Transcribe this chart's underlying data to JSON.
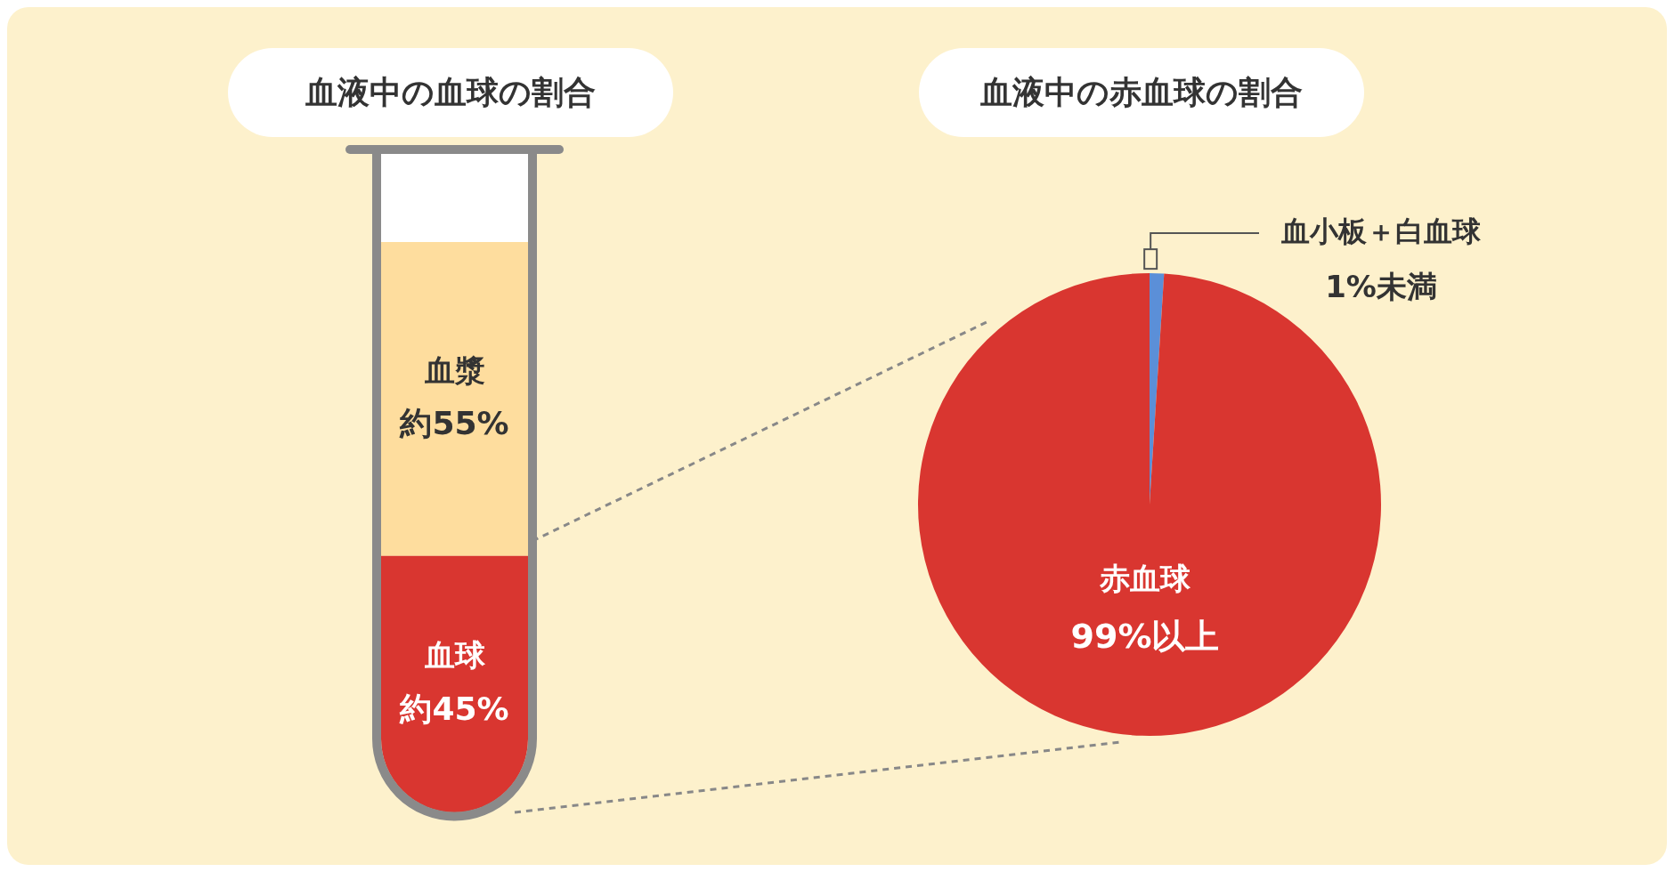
{
  "chart_data": [
    {
      "type": "bar",
      "title": "血液中の血球の割合",
      "stacked": true,
      "categories": [
        null
      ],
      "legend": false,
      "series": [
        {
          "name": "血球",
          "color": "#d93630",
          "values": [
            45
          ],
          "value_labels": [
            "約45%"
          ]
        },
        {
          "name": "血漿",
          "color": "#fedd9e",
          "values": [
            55
          ],
          "value_labels": [
            "約55%"
          ]
        }
      ]
    },
    {
      "type": "pie",
      "title": "血液中の赤血球の割合",
      "categories": [
        "血小板＋白血球",
        "赤血球"
      ],
      "values": [
        1,
        99
      ],
      "colors": [
        "#5b8fd8",
        "#d93630"
      ],
      "value_labels": [
        "1%未満",
        "99%以上"
      ],
      "legend": false
    }
  ]
}
